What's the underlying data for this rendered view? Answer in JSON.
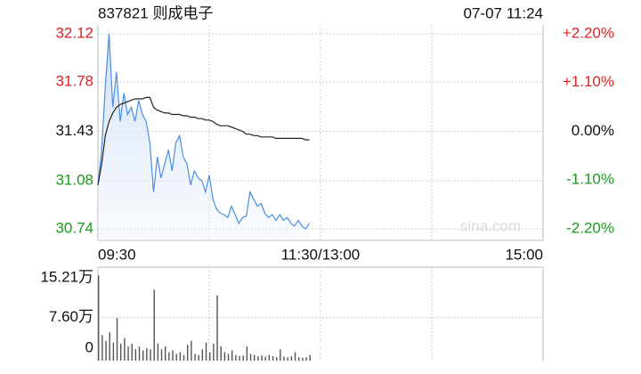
{
  "chart_data": [
    {
      "type": "line",
      "title": "837821 则成电子",
      "subtitle": "07-07 11:24",
      "watermark": "sina.com",
      "x": [
        0,
        2,
        4,
        6,
        8,
        10,
        12,
        14,
        16,
        18,
        20,
        22,
        24,
        26,
        28,
        30,
        32,
        34,
        36,
        38,
        40,
        42,
        44,
        46,
        48,
        50,
        52,
        54,
        56,
        58,
        60,
        62,
        64,
        66,
        68,
        70,
        72,
        74,
        76,
        78,
        80,
        82,
        84,
        86,
        88,
        90,
        92,
        94,
        96,
        98,
        100,
        102,
        104,
        106,
        108,
        110,
        112,
        114
      ],
      "xlim": [
        0,
        240
      ],
      "xticks": [
        {
          "value": 0,
          "label": "09:30"
        },
        {
          "value": 120,
          "label": "11:30/13:00"
        },
        {
          "value": 240,
          "label": "15:00"
        }
      ],
      "ylim": [
        30.74,
        32.12
      ],
      "yticks": [
        32.12,
        31.78,
        31.43,
        31.08,
        30.74
      ],
      "y2lim": [
        -2.2,
        2.2
      ],
      "y2ticks": [
        {
          "value": 2.2,
          "label": "+2.20%"
        },
        {
          "value": 1.1,
          "label": "+1.10%"
        },
        {
          "value": 0,
          "label": "0.00%"
        },
        {
          "value": -1.1,
          "label": "-1.10%"
        },
        {
          "value": -2.2,
          "label": "-2.20%"
        }
      ],
      "up_color": "#e02020",
      "down_color": "#1a9a1a",
      "flat_color": "#111111",
      "grid": true,
      "series": [
        {
          "name": "price",
          "color": "#4a8ee0",
          "fill": true,
          "values": [
            31.05,
            31.3,
            31.75,
            32.12,
            31.6,
            31.85,
            31.5,
            31.7,
            31.55,
            31.6,
            31.5,
            31.65,
            31.55,
            31.5,
            31.35,
            31.0,
            31.25,
            31.1,
            31.2,
            31.3,
            31.15,
            31.35,
            31.4,
            31.25,
            31.2,
            31.05,
            31.15,
            31.1,
            31.08,
            31.0,
            31.12,
            30.95,
            30.88,
            30.85,
            30.84,
            30.82,
            30.9,
            30.84,
            30.78,
            30.82,
            30.83,
            31.0,
            30.95,
            30.9,
            30.92,
            30.85,
            30.82,
            30.84,
            30.8,
            30.84,
            30.8,
            30.82,
            30.78,
            30.76,
            30.8,
            30.76,
            30.74,
            30.78
          ]
        },
        {
          "name": "average",
          "color": "#222222",
          "fill": false,
          "values": [
            31.05,
            31.2,
            31.4,
            31.5,
            31.56,
            31.6,
            31.62,
            31.63,
            31.64,
            31.65,
            31.66,
            31.66,
            31.66,
            31.67,
            31.67,
            31.6,
            31.58,
            31.57,
            31.56,
            31.56,
            31.55,
            31.55,
            31.55,
            31.54,
            31.54,
            31.53,
            31.53,
            31.52,
            31.52,
            31.51,
            31.51,
            31.5,
            31.48,
            31.47,
            31.47,
            31.47,
            31.46,
            31.45,
            31.44,
            31.43,
            31.41,
            31.41,
            31.4,
            31.4,
            31.39,
            31.39,
            31.39,
            31.39,
            31.38,
            31.38,
            31.38,
            31.38,
            31.38,
            31.38,
            31.38,
            31.38,
            31.37,
            31.37
          ]
        }
      ]
    },
    {
      "type": "bar",
      "color": "#555555",
      "x": [
        0,
        2,
        4,
        6,
        8,
        10,
        12,
        14,
        16,
        18,
        20,
        22,
        24,
        26,
        28,
        30,
        32,
        34,
        36,
        38,
        40,
        42,
        44,
        46,
        48,
        50,
        52,
        54,
        56,
        58,
        60,
        62,
        64,
        66,
        68,
        70,
        72,
        74,
        76,
        78,
        80,
        82,
        84,
        86,
        88,
        90,
        92,
        94,
        96,
        98,
        100,
        102,
        104,
        106,
        108,
        110,
        112,
        114
      ],
      "xlim": [
        0,
        240
      ],
      "ylim": [
        0,
        15.21
      ],
      "yticks": [
        {
          "value": 15.21,
          "label": "15.21万"
        },
        {
          "value": 7.6,
          "label": "7.60万"
        },
        0
      ],
      "grid": true,
      "values": [
        15,
        4.5,
        3.5,
        5,
        3.2,
        7.5,
        3,
        4,
        2.5,
        3,
        2,
        2.5,
        1.8,
        2.2,
        2,
        12.5,
        3,
        2,
        2.5,
        1.5,
        1.8,
        1.2,
        1.5,
        1,
        2.8,
        3.5,
        1.2,
        1,
        2,
        3.2,
        1.5,
        3,
        11.5,
        2.5,
        1.5,
        1.2,
        1.8,
        1,
        0.8,
        0.9,
        2.5,
        1.2,
        1,
        0.8,
        0.9,
        0.7,
        1,
        0.8,
        0.6,
        2,
        0.7,
        0.6,
        0.8,
        1.5,
        0.6,
        0.5,
        0.6,
        1
      ]
    }
  ]
}
